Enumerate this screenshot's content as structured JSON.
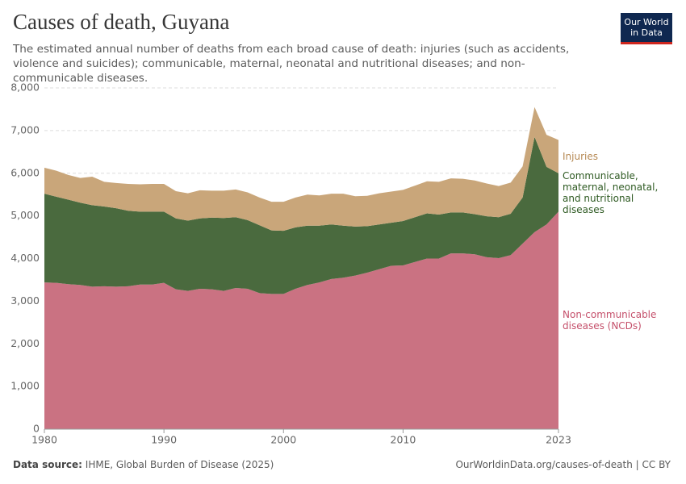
{
  "header": {
    "title": "Causes of death, Guyana",
    "subtitle": "The estimated annual number of deaths from each broad cause of death: injuries (such as accidents, violence and suicides); communicable, maternal, neonatal and nutritional diseases; and non-communicable diseases.",
    "logo": [
      "Our World",
      "in Data"
    ]
  },
  "chart_data": {
    "type": "stacked-area",
    "x": [
      1980,
      1981,
      1982,
      1983,
      1984,
      1985,
      1986,
      1987,
      1988,
      1989,
      1990,
      1991,
      1992,
      1993,
      1994,
      1995,
      1996,
      1997,
      1998,
      1999,
      2000,
      2001,
      2002,
      2003,
      2004,
      2005,
      2006,
      2007,
      2008,
      2009,
      2010,
      2011,
      2012,
      2013,
      2014,
      2015,
      2016,
      2017,
      2018,
      2019,
      2020,
      2021,
      2022,
      2023
    ],
    "series": [
      {
        "name": "Non-communicable diseases (NCDs)",
        "color": "#ca7282",
        "label_color": "#c5506b",
        "values": [
          3440,
          3430,
          3400,
          3380,
          3340,
          3350,
          3340,
          3350,
          3390,
          3390,
          3430,
          3280,
          3240,
          3290,
          3280,
          3240,
          3310,
          3290,
          3190,
          3170,
          3170,
          3290,
          3380,
          3440,
          3520,
          3550,
          3600,
          3670,
          3750,
          3830,
          3840,
          3920,
          4000,
          4000,
          4120,
          4120,
          4100,
          4030,
          4010,
          4080,
          4350,
          4620,
          4800,
          5100
        ]
      },
      {
        "name": "Communicable, maternal, neonatal, and nutritional diseases",
        "color": "#4a6a3e",
        "label_color": "#2e5a22",
        "values": [
          2080,
          2020,
          1980,
          1930,
          1910,
          1870,
          1840,
          1770,
          1710,
          1710,
          1670,
          1660,
          1650,
          1650,
          1680,
          1710,
          1660,
          1610,
          1590,
          1490,
          1480,
          1440,
          1390,
          1330,
          1280,
          1220,
          1150,
          1090,
          1050,
          1010,
          1040,
          1050,
          1060,
          1030,
          960,
          960,
          940,
          960,
          960,
          970,
          1080,
          2230,
          1350,
          900
        ]
      },
      {
        "name": "Injuries",
        "color": "#c9a67a",
        "label_color": "#b68954",
        "values": [
          610,
          610,
          580,
          580,
          670,
          580,
          590,
          630,
          640,
          650,
          650,
          640,
          640,
          660,
          630,
          640,
          650,
          650,
          650,
          670,
          680,
          700,
          730,
          710,
          720,
          750,
          710,
          710,
          730,
          730,
          730,
          740,
          750,
          770,
          800,
          790,
          790,
          770,
          730,
          730,
          730,
          700,
          750,
          780
        ]
      }
    ],
    "xlim": [
      1980,
      2023
    ],
    "xticks": [
      1980,
      1990,
      2000,
      2010,
      2023
    ],
    "ylim": [
      0,
      8000
    ],
    "yticks": [
      0,
      {
        "value": 1000,
        "label": "1,000"
      },
      {
        "value": 2000,
        "label": "2,000"
      },
      {
        "value": 3000,
        "label": "3,000"
      },
      {
        "value": 4000,
        "label": "4,000"
      },
      {
        "value": 5000,
        "label": "5,000"
      },
      {
        "value": 6000,
        "label": "6,000"
      },
      {
        "value": 7000,
        "label": "7,000"
      },
      {
        "value": 8000,
        "label": "8,000"
      }
    ],
    "grid": true
  },
  "footer": {
    "source_label": "Data source:",
    "source": "IHME, Global Burden of Disease (2025)",
    "url": "OurWorldinData.org/causes-of-death | CC BY"
  }
}
